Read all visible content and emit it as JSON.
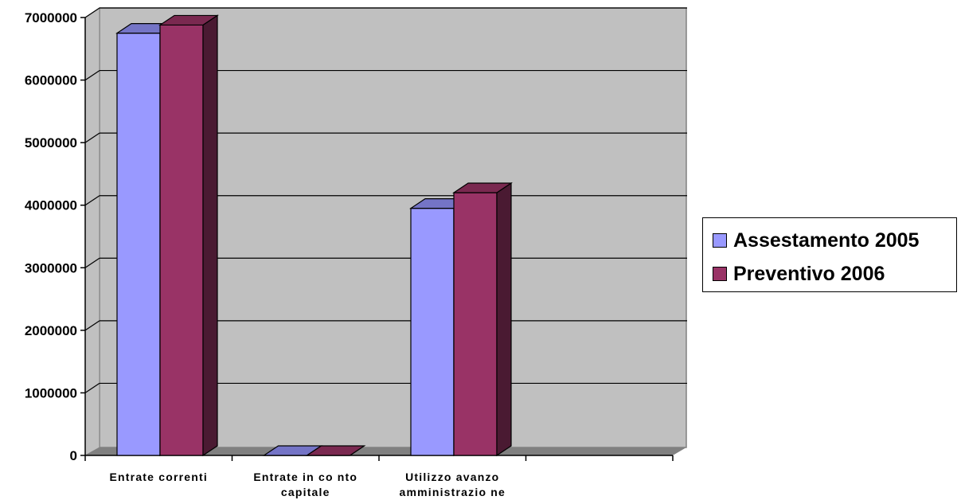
{
  "chart_data": {
    "type": "bar",
    "categories": [
      "Entrate correnti",
      "Entrate in conto capitale",
      "Utilizzo avanzo amministrazione",
      ""
    ],
    "category_lines": [
      [
        "Entrate correnti"
      ],
      [
        "Entrate in co nto",
        "capitale"
      ],
      [
        "Utilizzo avanzo",
        "amministrazio ne"
      ],
      []
    ],
    "series": [
      {
        "name": "Assestamento 2005",
        "values": [
          6750000,
          0,
          3950000,
          null
        ]
      },
      {
        "name": "Preventivo 2006",
        "values": [
          6880000,
          0,
          4200000,
          null
        ]
      }
    ],
    "ylim": [
      0,
      7000000
    ],
    "yticks": [
      "0",
      "1000000",
      "2000000",
      "3000000",
      "4000000",
      "5000000",
      "6000000",
      "7000000"
    ],
    "grid": true,
    "legend_position": "right",
    "style": "3d-clustered-column"
  },
  "colors": {
    "series": [
      {
        "front": "#9999ff",
        "top": "#7474c6",
        "side": "#4c4c8a"
      },
      {
        "front": "#993366",
        "top": "#7a2950",
        "side": "#4a1a32"
      }
    ],
    "wall": "#c0c0c0",
    "floor": "#808080",
    "gridline": "#000000"
  }
}
